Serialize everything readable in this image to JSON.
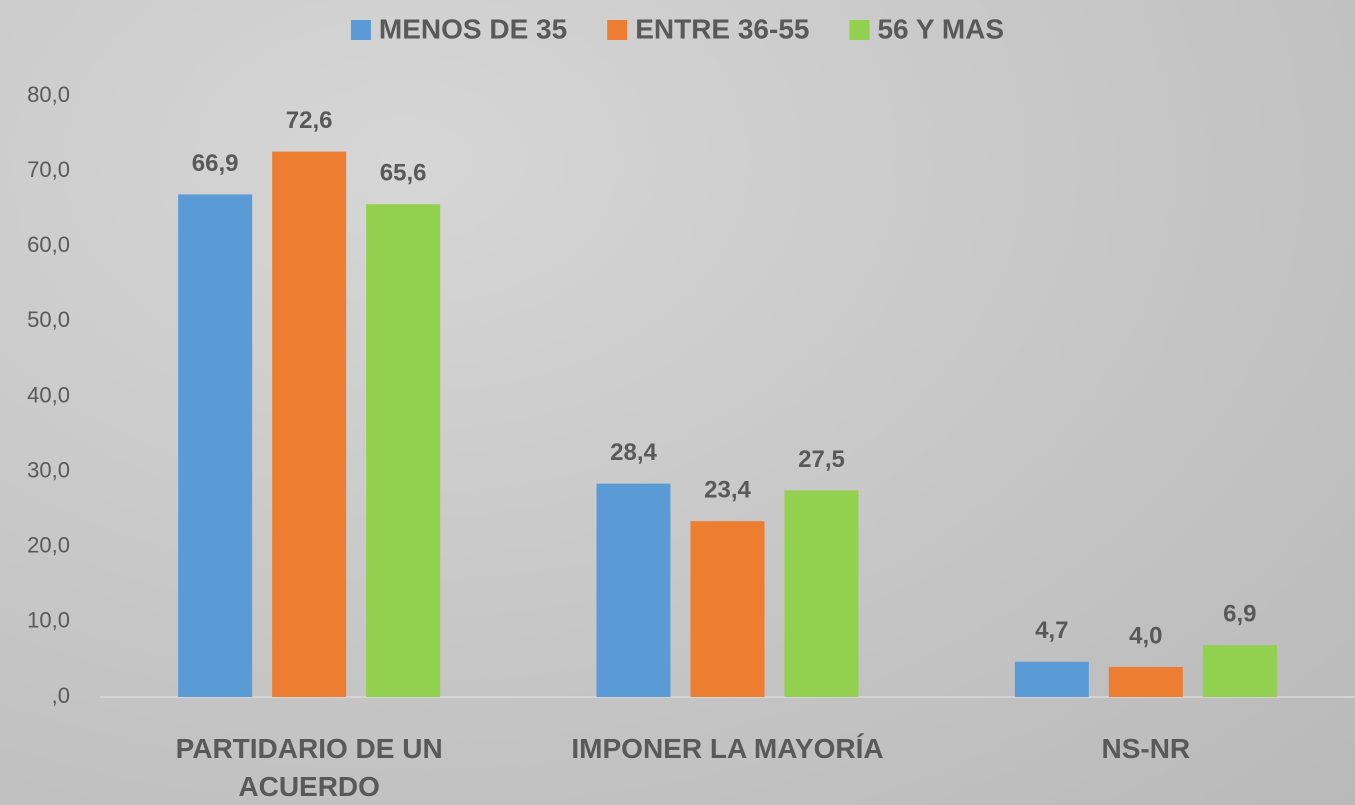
{
  "chart_data": {
    "type": "bar",
    "categories": [
      "PARTIDARIO DE UN ACUERDO",
      "IMPONER LA MAYORÍA",
      "NS-NR"
    ],
    "series": [
      {
        "name": "MENOS DE 35",
        "color": "#5b9bd5",
        "values": [
          66.9,
          28.4,
          4.7
        ],
        "value_labels": [
          "66,9",
          "28,4",
          "4,7"
        ]
      },
      {
        "name": "ENTRE 36-55",
        "color": "#ed7d31",
        "values": [
          72.6,
          23.4,
          4.0
        ],
        "value_labels": [
          "72,6",
          "23,4",
          "4,0"
        ]
      },
      {
        "name": "56 Y MAS",
        "color": "#92d050",
        "values": [
          65.6,
          27.5,
          6.9
        ],
        "value_labels": [
          "65,6",
          "27,5",
          "6,9"
        ]
      }
    ],
    "ylim": [
      0,
      80
    ],
    "yticks": [
      {
        "value": 0,
        "label": ",0"
      },
      {
        "value": 10,
        "label": "10,0"
      },
      {
        "value": 20,
        "label": "20,0"
      },
      {
        "value": 30,
        "label": "30,0"
      },
      {
        "value": 40,
        "label": "40,0"
      },
      {
        "value": 50,
        "label": "50,0"
      },
      {
        "value": 60,
        "label": "60,0"
      },
      {
        "value": 70,
        "label": "70,0"
      },
      {
        "value": 80,
        "label": "80,0"
      }
    ],
    "legend": "top"
  }
}
